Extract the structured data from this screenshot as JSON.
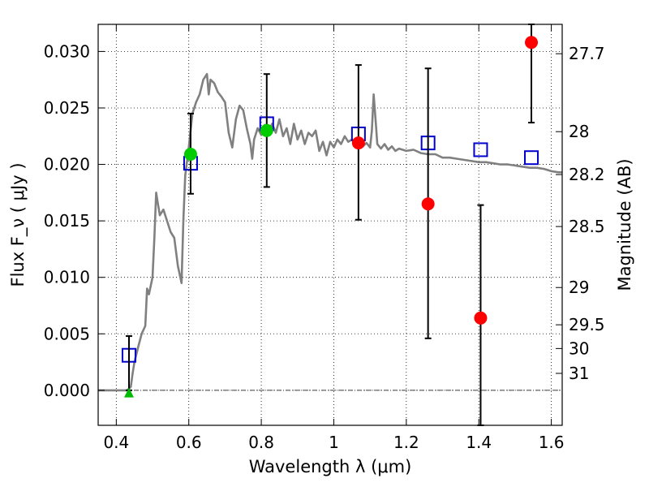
{
  "chart_data": {
    "type": "scatter",
    "xlabel": "Wavelength  λ (μm)",
    "ylabel": "Flux  F_ν  ( μJy )",
    "ylabel_right": "Magnitude (AB)",
    "xlim": [
      0.35,
      1.63
    ],
    "ylim": [
      -0.0031,
      0.0324
    ],
    "x_ticks": [
      0.4,
      0.6,
      0.8,
      1.0,
      1.2,
      1.4,
      1.6
    ],
    "x_tick_labels": [
      "0.4",
      "0.6",
      "0.8",
      "1",
      "1.2",
      "1.4",
      "1.6"
    ],
    "y_ticks": [
      0.0,
      0.005,
      0.01,
      0.015,
      0.02,
      0.025,
      0.03
    ],
    "y_tick_labels": [
      "0.000",
      "0.005",
      "0.010",
      "0.015",
      "0.020",
      "0.025",
      "0.030"
    ],
    "right_ticks": [
      {
        "label": "27.7",
        "flux": 0.0298
      },
      {
        "label": "28",
        "flux": 0.0229
      },
      {
        "label": "28.2",
        "flux": 0.0191
      },
      {
        "label": "28.5",
        "flux": 0.0145
      },
      {
        "label": "29",
        "flux": 0.0091
      },
      {
        "label": "29.5",
        "flux": 0.0058
      },
      {
        "label": "30",
        "flux": 0.0037
      },
      {
        "label": "31",
        "flux": 0.0015
      }
    ],
    "grid": true,
    "series": [
      {
        "kind": "line",
        "color": "#808080",
        "points": [
          [
            0.35,
            0.0
          ],
          [
            0.4,
            0.0
          ],
          [
            0.43,
            0.0
          ],
          [
            0.44,
            0.0003
          ],
          [
            0.445,
            0.0015
          ],
          [
            0.45,
            0.0025
          ],
          [
            0.46,
            0.0038
          ],
          [
            0.47,
            0.005
          ],
          [
            0.48,
            0.0057
          ],
          [
            0.485,
            0.009
          ],
          [
            0.49,
            0.0085
          ],
          [
            0.5,
            0.01
          ],
          [
            0.505,
            0.0135
          ],
          [
            0.51,
            0.0175
          ],
          [
            0.515,
            0.0165
          ],
          [
            0.52,
            0.0155
          ],
          [
            0.53,
            0.016
          ],
          [
            0.54,
            0.015
          ],
          [
            0.55,
            0.014
          ],
          [
            0.56,
            0.0135
          ],
          [
            0.57,
            0.011
          ],
          [
            0.58,
            0.0095
          ],
          [
            0.585,
            0.015
          ],
          [
            0.59,
            0.019
          ],
          [
            0.6,
            0.0215
          ],
          [
            0.61,
            0.0245
          ],
          [
            0.62,
            0.0255
          ],
          [
            0.63,
            0.0262
          ],
          [
            0.64,
            0.0275
          ],
          [
            0.65,
            0.028
          ],
          [
            0.655,
            0.0262
          ],
          [
            0.66,
            0.0275
          ],
          [
            0.67,
            0.0272
          ],
          [
            0.68,
            0.0264
          ],
          [
            0.69,
            0.026
          ],
          [
            0.7,
            0.0255
          ],
          [
            0.71,
            0.0228
          ],
          [
            0.72,
            0.0215
          ],
          [
            0.73,
            0.024
          ],
          [
            0.74,
            0.0252
          ],
          [
            0.75,
            0.0248
          ],
          [
            0.76,
            0.0232
          ],
          [
            0.77,
            0.0218
          ],
          [
            0.775,
            0.0205
          ],
          [
            0.78,
            0.0222
          ],
          [
            0.79,
            0.0232
          ],
          [
            0.8,
            0.0226
          ],
          [
            0.81,
            0.0235
          ],
          [
            0.82,
            0.023
          ],
          [
            0.83,
            0.0236
          ],
          [
            0.84,
            0.0228
          ],
          [
            0.85,
            0.024
          ],
          [
            0.86,
            0.0225
          ],
          [
            0.87,
            0.0232
          ],
          [
            0.88,
            0.0218
          ],
          [
            0.89,
            0.0236
          ],
          [
            0.9,
            0.0222
          ],
          [
            0.91,
            0.023
          ],
          [
            0.92,
            0.0218
          ],
          [
            0.93,
            0.0228
          ],
          [
            0.94,
            0.0225
          ],
          [
            0.95,
            0.023
          ],
          [
            0.96,
            0.0212
          ],
          [
            0.97,
            0.022
          ],
          [
            0.98,
            0.0208
          ],
          [
            0.99,
            0.022
          ],
          [
            1.0,
            0.0215
          ],
          [
            1.01,
            0.0222
          ],
          [
            1.02,
            0.0218
          ],
          [
            1.03,
            0.0225
          ],
          [
            1.04,
            0.022
          ],
          [
            1.05,
            0.0222
          ],
          [
            1.06,
            0.0218
          ],
          [
            1.07,
            0.022
          ],
          [
            1.08,
            0.0216
          ],
          [
            1.09,
            0.0219
          ],
          [
            1.1,
            0.0215
          ],
          [
            1.105,
            0.023
          ],
          [
            1.11,
            0.0262
          ],
          [
            1.115,
            0.024
          ],
          [
            1.12,
            0.0218
          ],
          [
            1.13,
            0.0214
          ],
          [
            1.14,
            0.0218
          ],
          [
            1.15,
            0.0213
          ],
          [
            1.16,
            0.0216
          ],
          [
            1.17,
            0.0212
          ],
          [
            1.18,
            0.0214
          ],
          [
            1.2,
            0.0212
          ],
          [
            1.22,
            0.0213
          ],
          [
            1.24,
            0.021
          ],
          [
            1.26,
            0.0209
          ],
          [
            1.28,
            0.0209
          ],
          [
            1.3,
            0.0206
          ],
          [
            1.32,
            0.0206
          ],
          [
            1.34,
            0.0205
          ],
          [
            1.36,
            0.0204
          ],
          [
            1.38,
            0.0203
          ],
          [
            1.4,
            0.0202
          ],
          [
            1.42,
            0.0202
          ],
          [
            1.44,
            0.0201
          ],
          [
            1.46,
            0.02
          ],
          [
            1.48,
            0.02
          ],
          [
            1.5,
            0.0199
          ],
          [
            1.52,
            0.0198
          ],
          [
            1.54,
            0.0197
          ],
          [
            1.56,
            0.0197
          ],
          [
            1.58,
            0.0196
          ],
          [
            1.6,
            0.0194
          ],
          [
            1.62,
            0.0193
          ],
          [
            1.63,
            0.0193
          ]
        ]
      },
      {
        "kind": "square",
        "color": "#0000cc",
        "points": [
          {
            "x": 0.435,
            "y": 0.0031
          },
          {
            "x": 0.605,
            "y": 0.0201
          },
          {
            "x": 0.815,
            "y": 0.0236
          },
          {
            "x": 1.068,
            "y": 0.0227
          },
          {
            "x": 1.26,
            "y": 0.0219
          },
          {
            "x": 1.405,
            "y": 0.0213
          },
          {
            "x": 1.545,
            "y": 0.0206
          }
        ]
      },
      {
        "kind": "circle",
        "color": "#00cc00",
        "points": [
          {
            "x": 0.605,
            "y": 0.0209,
            "err_low": 0.0174,
            "err_high": 0.0245
          },
          {
            "x": 0.815,
            "y": 0.023,
            "err_low": 0.018,
            "err_high": 0.028
          }
        ]
      },
      {
        "kind": "circle",
        "color": "#ff0000",
        "points": [
          {
            "x": 1.068,
            "y": 0.0219,
            "err_low": 0.0151,
            "err_high": 0.0288
          },
          {
            "x": 1.26,
            "y": 0.0165,
            "err_low": 0.0046,
            "err_high": 0.0285
          },
          {
            "x": 1.405,
            "y": 0.0064,
            "err_low": -0.0031,
            "err_high": 0.0164
          },
          {
            "x": 1.545,
            "y": 0.0308,
            "err_low": 0.0237,
            "err_high": 0.0324
          }
        ]
      },
      {
        "kind": "triangle",
        "color": "#00bb00",
        "points": [
          {
            "x": 0.435,
            "y": -0.0002,
            "err_low": 0.0,
            "err_high": 0.0048
          }
        ]
      }
    ]
  }
}
